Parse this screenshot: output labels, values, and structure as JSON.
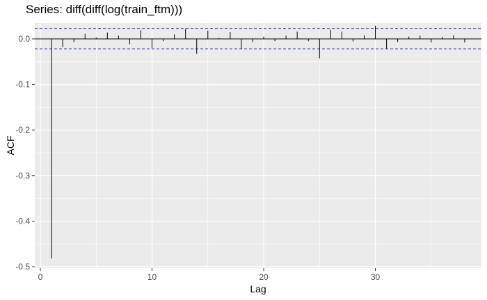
{
  "chart_data": {
    "type": "bar",
    "title": "Series: diff(diff(log(train_ftm)))",
    "xlabel": "Lag",
    "ylabel": "ACF",
    "xlim": [
      -0.5,
      39.5
    ],
    "ylim": [
      -0.503,
      0.035
    ],
    "x_ticks": [
      0,
      10,
      20,
      30
    ],
    "y_ticks": [
      0.0,
      -0.1,
      -0.2,
      -0.3,
      -0.4,
      -0.5
    ],
    "y_tick_labels": [
      "0.0",
      "-0.1",
      "-0.2",
      "-0.3",
      "-0.4",
      "-0.5"
    ],
    "confidence_band": [
      0.022,
      -0.022
    ],
    "lags": [
      1,
      2,
      3,
      4,
      5,
      6,
      7,
      8,
      9,
      10,
      11,
      12,
      13,
      14,
      15,
      16,
      17,
      18,
      19,
      20,
      21,
      22,
      23,
      24,
      25,
      26,
      27,
      28,
      29,
      30,
      31,
      32,
      33,
      34,
      35,
      36,
      37,
      38
    ],
    "values": [
      -0.482,
      -0.018,
      -0.007,
      0.011,
      0.003,
      0.014,
      0.007,
      -0.012,
      0.019,
      -0.02,
      -0.005,
      0.01,
      0.022,
      -0.033,
      0.018,
      0.002,
      0.015,
      -0.022,
      -0.007,
      0.005,
      -0.005,
      0.007,
      0.016,
      -0.005,
      -0.043,
      0.02,
      0.016,
      -0.006,
      0.008,
      0.029,
      -0.022,
      -0.007,
      0.005,
      0.007,
      -0.008,
      0.004,
      0.008,
      -0.008
    ],
    "grid": true,
    "colors": {
      "panel": "#EBEBEB",
      "grid": "#FFFFFF",
      "band": "#0000CC",
      "bar": "#000000"
    }
  }
}
